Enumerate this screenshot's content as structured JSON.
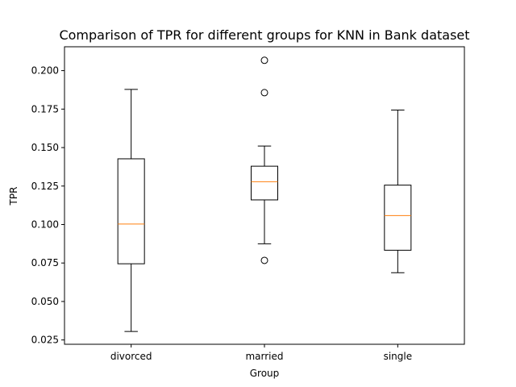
{
  "chart_data": {
    "type": "box",
    "title": "Comparison of TPR for different groups for KNN in Bank dataset",
    "xlabel": "Group",
    "ylabel": "TPR",
    "ylim": [
      0.0222,
      0.2155
    ],
    "yticks": [
      0.025,
      0.05,
      0.075,
      0.1,
      0.125,
      0.15,
      0.175,
      0.2
    ],
    "ytick_labels": [
      "0.025",
      "0.050",
      "0.075",
      "0.100",
      "0.125",
      "0.150",
      "0.175",
      "0.200"
    ],
    "categories": [
      "divorced",
      "married",
      "single"
    ],
    "grid": false,
    "colors": {
      "box": "#000000",
      "median": "#ff7f0e"
    },
    "boxes": [
      {
        "category": "divorced",
        "whisker_low": 0.0305,
        "q1": 0.0745,
        "median": 0.1003,
        "q3": 0.1427,
        "whisker_high": 0.1878,
        "outliers": []
      },
      {
        "category": "married",
        "whisker_low": 0.0875,
        "q1": 0.116,
        "median": 0.1278,
        "q3": 0.1379,
        "whisker_high": 0.151,
        "outliers": [
          0.2067,
          0.1857,
          0.0767
        ]
      },
      {
        "category": "single",
        "whisker_low": 0.0687,
        "q1": 0.0833,
        "median": 0.1058,
        "q3": 0.1256,
        "whisker_high": 0.1744,
        "outliers": []
      }
    ]
  }
}
